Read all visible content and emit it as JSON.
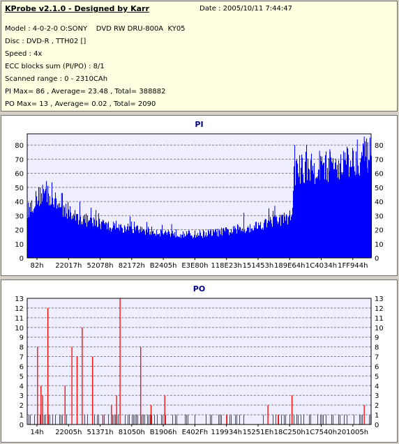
{
  "header": {
    "app_title": "KProbe v2.1.0 - Designed by Karr",
    "date": "Date : 2005/10/11 7:44:47",
    "model": "Model : 4-0-2-0 O:SONY    DVD RW DRU-800A  KY05",
    "disc": "Disc : DVD-R , TTH02 []",
    "speed": "Speed : 4x",
    "ecc": "ECC blocks sum (PI/PO) : 8/1",
    "scanned_range": "Scanned range : 0 - 2310CAh",
    "pi_stats": "PI Max= 86 , Average= 23.48 , Total= 388882",
    "po_stats": "PO Max= 13 , Average= 0.02 , Total= 2090"
  },
  "colors": {
    "pi_fill": "#0000ff",
    "po_bar": "#ff0000",
    "plot_background": "#eeeeff",
    "grid": "#808080"
  },
  "chart_data": [
    {
      "type": "area",
      "title": "PI",
      "ylim": [
        0,
        88
      ],
      "yticks": [
        0,
        10,
        20,
        30,
        40,
        50,
        60,
        70,
        80
      ],
      "x_tick_labels": [
        "82h",
        "22017h",
        "52078h",
        "82172h",
        "B2405h",
        "E3E80h",
        "118E23h",
        "151453h",
        "189E64h",
        "1C4034h",
        "1FF944h"
      ],
      "grid": "horizontal dashed",
      "mean_profile": [
        [
          0,
          33
        ],
        [
          0.03,
          43
        ],
        [
          0.05,
          46
        ],
        [
          0.08,
          40
        ],
        [
          0.12,
          31
        ],
        [
          0.18,
          26
        ],
        [
          0.25,
          22
        ],
        [
          0.32,
          20
        ],
        [
          0.4,
          18
        ],
        [
          0.48,
          16.5
        ],
        [
          0.55,
          18
        ],
        [
          0.62,
          20
        ],
        [
          0.7,
          25
        ],
        [
          0.75,
          28
        ],
        [
          0.77,
          30
        ],
        [
          0.775,
          62
        ],
        [
          0.82,
          63
        ],
        [
          0.88,
          65
        ],
        [
          0.93,
          68
        ],
        [
          0.97,
          71
        ],
        [
          1.0,
          73
        ]
      ],
      "spikes": [
        [
          0.045,
          52
        ],
        [
          0.06,
          51
        ],
        [
          0.1,
          46
        ],
        [
          0.2,
          34
        ],
        [
          0.42,
          24
        ],
        [
          0.63,
          32
        ],
        [
          0.72,
          37
        ],
        [
          0.778,
          80
        ],
        [
          0.8,
          71
        ],
        [
          0.85,
          76
        ],
        [
          0.88,
          77
        ],
        [
          0.93,
          79
        ],
        [
          0.96,
          84
        ],
        [
          0.98,
          86
        ],
        [
          0.99,
          82
        ]
      ]
    },
    {
      "type": "bar",
      "title": "PO",
      "ylim": [
        0,
        13
      ],
      "yticks": [
        0,
        1,
        2,
        3,
        4,
        5,
        6,
        7,
        8,
        9,
        10,
        11,
        12,
        13
      ],
      "x_tick_labels": [
        "14h",
        "22005h",
        "51371h",
        "81050h",
        "B1906h",
        "E402Fh",
        "119934h",
        "15251Eh",
        "18C250h",
        "1C7540h",
        "201005h"
      ],
      "grid": "horizontal dashed",
      "peaks": [
        [
          0.03,
          8
        ],
        [
          0.04,
          4
        ],
        [
          0.045,
          3
        ],
        [
          0.06,
          12
        ],
        [
          0.11,
          4
        ],
        [
          0.13,
          8
        ],
        [
          0.145,
          7
        ],
        [
          0.16,
          10
        ],
        [
          0.19,
          7
        ],
        [
          0.22,
          1
        ],
        [
          0.245,
          2
        ],
        [
          0.26,
          3
        ],
        [
          0.27,
          13
        ],
        [
          0.33,
          8
        ],
        [
          0.36,
          2
        ],
        [
          0.4,
          3
        ],
        [
          0.58,
          1
        ],
        [
          0.7,
          2
        ],
        [
          0.73,
          1
        ],
        [
          0.77,
          3
        ],
        [
          0.98,
          2
        ]
      ],
      "baseline_density": 0.35
    }
  ]
}
